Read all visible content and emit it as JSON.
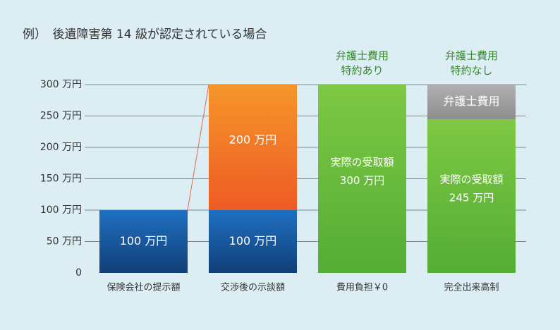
{
  "title": "例）　後遺障害第 14 級が認定されている場合",
  "chart_data": {
    "type": "bar",
    "stacked": true,
    "unit": "万円",
    "ylim": [
      0,
      300
    ],
    "yticks": [
      {
        "value": 0,
        "label": "0"
      },
      {
        "value": 50,
        "label": "50 万円"
      },
      {
        "value": 100,
        "label": "100 万円"
      },
      {
        "value": 150,
        "label": "150 万円"
      },
      {
        "value": 200,
        "label": "200 万円"
      },
      {
        "value": 250,
        "label": "250 万円"
      },
      {
        "value": 300,
        "label": "300 万円"
      }
    ],
    "grid": true,
    "categories": [
      "保険会社の提示額",
      "交渉後の示談額",
      "費用負担￥0",
      "完全出来高制"
    ],
    "headers": [
      "",
      "",
      "弁護士費用\n特約あり",
      "弁護士費用\n特約なし"
    ],
    "bars": [
      {
        "category": "保険会社の提示額",
        "segments": [
          {
            "value": 100,
            "color": "#1b5ea8",
            "label": "100 万円"
          }
        ]
      },
      {
        "category": "交渉後の示談額",
        "segments": [
          {
            "value": 100,
            "color": "#1b5ea8",
            "label": "100 万円"
          },
          {
            "value": 200,
            "color": "#f37324",
            "label": "200 万円"
          }
        ]
      },
      {
        "category": "費用負担￥0",
        "segments": [
          {
            "value": 300,
            "color": "#6cc13f",
            "label": "実際の受取額\n300 万円"
          }
        ]
      },
      {
        "category": "完全出来高制",
        "segments": [
          {
            "value": 245,
            "color": "#6cc13f",
            "label": "実際の受取額\n245 万円"
          },
          {
            "value": 55,
            "color": "#9a9a9a",
            "label": "弁護士費用"
          }
        ]
      }
    ],
    "connector": {
      "from_bar": 0,
      "to_bar": 1,
      "from_value": 100,
      "to_value": 300,
      "color": "#e06a4a"
    },
    "header_color": "#3a8a2e"
  }
}
